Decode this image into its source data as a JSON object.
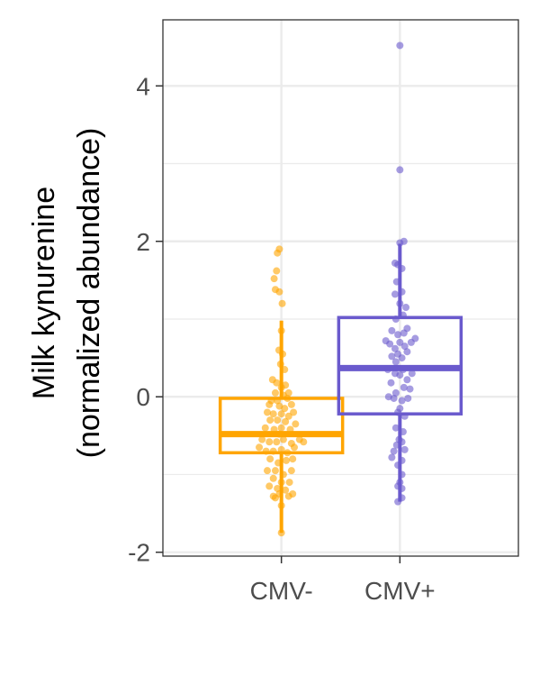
{
  "chart_data": {
    "type": "box",
    "ylabel_lines": [
      "Milk kynurenine",
      "(normalized abundance)"
    ],
    "ylim": [
      -2.05,
      4.85
    ],
    "yticks": [
      -2,
      0,
      2,
      4
    ],
    "ytick_labels": [
      "-2",
      "0",
      "2",
      "4"
    ],
    "categories": [
      "CMV-",
      "CMV+"
    ],
    "grid": true,
    "legend": "none",
    "groups": [
      {
        "category": "CMV-",
        "color": "#FFA500",
        "box": {
          "lower_whisker": -1.75,
          "q1": -0.72,
          "median": -0.48,
          "q3": -0.02,
          "upper_whisker": 0.98
        },
        "points": [
          [
            -0.05,
            1.9
          ],
          [
            -0.1,
            1.85
          ],
          [
            -0.18,
            1.52
          ],
          [
            -0.12,
            1.62
          ],
          [
            -0.15,
            1.38
          ],
          [
            -0.05,
            1.35
          ],
          [
            0.02,
            1.2
          ],
          [
            0.0,
            0.85
          ],
          [
            -0.06,
            0.6
          ],
          [
            0.03,
            0.55
          ],
          [
            -0.02,
            0.42
          ],
          [
            0.08,
            0.35
          ],
          [
            -0.22,
            0.22
          ],
          [
            -0.12,
            0.18
          ],
          [
            0.0,
            0.12
          ],
          [
            0.1,
            0.15
          ],
          [
            0.18,
            0.05
          ],
          [
            -0.15,
            0.05
          ],
          [
            0.05,
            0.02
          ],
          [
            -0.25,
            -0.05
          ],
          [
            -0.1,
            -0.05
          ],
          [
            0.15,
            -0.02
          ],
          [
            -0.3,
            -0.1
          ],
          [
            -0.05,
            -0.12
          ],
          [
            0.25,
            -0.1
          ],
          [
            0.08,
            -0.15
          ],
          [
            -0.35,
            -0.2
          ],
          [
            -0.2,
            -0.22
          ],
          [
            0.0,
            -0.22
          ],
          [
            0.3,
            -0.2
          ],
          [
            0.18,
            -0.25
          ],
          [
            -0.1,
            -0.3
          ],
          [
            -0.28,
            -0.3
          ],
          [
            0.1,
            -0.32
          ],
          [
            0.35,
            -0.35
          ],
          [
            -0.4,
            -0.4
          ],
          [
            -0.18,
            -0.42
          ],
          [
            0.0,
            -0.4
          ],
          [
            0.22,
            -0.42
          ],
          [
            -0.05,
            -0.48
          ],
          [
            -0.48,
            -0.55
          ],
          [
            -0.3,
            -0.58
          ],
          [
            -0.12,
            -0.58
          ],
          [
            0.05,
            -0.55
          ],
          [
            0.25,
            -0.6
          ],
          [
            0.45,
            -0.55
          ],
          [
            0.55,
            -0.58
          ],
          [
            -0.55,
            -0.65
          ],
          [
            -0.38,
            -0.7
          ],
          [
            -0.2,
            -0.7
          ],
          [
            0.0,
            -0.68
          ],
          [
            0.15,
            -0.72
          ],
          [
            0.32,
            -0.65
          ],
          [
            -0.28,
            -0.8
          ],
          [
            -0.08,
            -0.85
          ],
          [
            0.12,
            -0.82
          ],
          [
            0.28,
            -0.8
          ],
          [
            -0.35,
            -0.95
          ],
          [
            -0.15,
            -0.95
          ],
          [
            0.05,
            -1.0
          ],
          [
            0.25,
            -0.95
          ],
          [
            -0.2,
            -1.05
          ],
          [
            0.0,
            -1.1
          ],
          [
            0.2,
            -1.1
          ],
          [
            -0.3,
            -1.15
          ],
          [
            -0.1,
            -1.18
          ],
          [
            0.1,
            -1.2
          ],
          [
            -0.05,
            -1.25
          ],
          [
            -0.2,
            -1.28
          ],
          [
            0.18,
            -1.28
          ],
          [
            0.28,
            -1.25
          ],
          [
            -0.15,
            -1.3
          ],
          [
            0.0,
            -1.4
          ],
          [
            0.0,
            -1.75
          ]
        ]
      },
      {
        "category": "CMV+",
        "color": "#6A5ACD",
        "box": {
          "lower_whisker": -1.35,
          "q1": -0.22,
          "median": 0.37,
          "q3": 1.02,
          "upper_whisker": 1.97
        },
        "points": [
          [
            0.0,
            4.52
          ],
          [
            0.0,
            2.92
          ],
          [
            0.0,
            1.98
          ],
          [
            0.1,
            2.0
          ],
          [
            -0.12,
            1.72
          ],
          [
            -0.05,
            1.7
          ],
          [
            0.05,
            1.65
          ],
          [
            -0.08,
            1.48
          ],
          [
            0.05,
            1.35
          ],
          [
            -0.12,
            1.32
          ],
          [
            0.0,
            1.2
          ],
          [
            0.15,
            1.15
          ],
          [
            -0.1,
            1.0
          ],
          [
            0.08,
            1.05
          ],
          [
            -0.2,
            0.85
          ],
          [
            0.18,
            0.88
          ],
          [
            -0.05,
            0.8
          ],
          [
            0.1,
            0.82
          ],
          [
            -0.35,
            0.72
          ],
          [
            -0.25,
            0.68
          ],
          [
            -0.12,
            0.62
          ],
          [
            0.0,
            0.7
          ],
          [
            0.12,
            0.65
          ],
          [
            0.28,
            0.7
          ],
          [
            0.38,
            0.75
          ],
          [
            -0.05,
            0.55
          ],
          [
            0.18,
            0.58
          ],
          [
            -0.2,
            0.52
          ],
          [
            -0.1,
            0.45
          ],
          [
            0.05,
            0.5
          ],
          [
            -0.3,
            0.35
          ],
          [
            0.08,
            0.35
          ],
          [
            0.3,
            0.3
          ],
          [
            -0.12,
            0.3
          ],
          [
            0.0,
            0.28
          ],
          [
            0.18,
            0.22
          ],
          [
            -0.22,
            0.18
          ],
          [
            0.1,
            0.12
          ],
          [
            -0.1,
            0.05
          ],
          [
            0.25,
            0.1
          ],
          [
            -0.28,
            0.0
          ],
          [
            0.05,
            -0.05
          ],
          [
            -0.15,
            -0.02
          ],
          [
            0.2,
            -0.02
          ],
          [
            0.0,
            -0.15
          ],
          [
            -0.05,
            -0.2
          ],
          [
            0.12,
            -0.25
          ],
          [
            -0.1,
            -0.4
          ],
          [
            0.08,
            -0.45
          ],
          [
            -0.02,
            -0.55
          ],
          [
            0.05,
            -0.58
          ],
          [
            -0.08,
            -0.62
          ],
          [
            -0.15,
            -0.7
          ],
          [
            0.12,
            -0.68
          ],
          [
            -0.2,
            -0.78
          ],
          [
            0.05,
            -0.82
          ],
          [
            -0.05,
            -0.88
          ],
          [
            0.05,
            -1.0
          ],
          [
            0.0,
            -1.1
          ],
          [
            -0.05,
            -1.15
          ],
          [
            0.05,
            -1.18
          ],
          [
            0.05,
            -1.3
          ],
          [
            -0.05,
            -1.35
          ]
        ]
      }
    ]
  }
}
